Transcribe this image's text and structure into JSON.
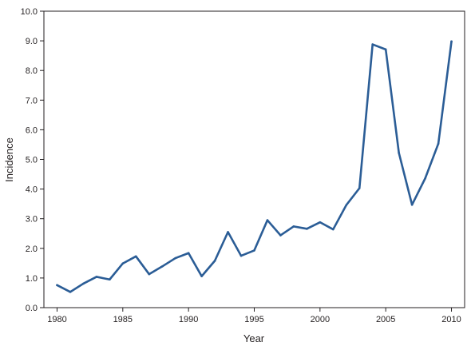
{
  "chart_data": {
    "type": "line",
    "title": "",
    "xlabel": "Year",
    "ylabel": "Incidence",
    "xlim": [
      1979,
      2011
    ],
    "ylim": [
      0,
      10
    ],
    "x_ticks": [
      1980,
      1985,
      1990,
      1995,
      2000,
      2005,
      2010
    ],
    "x_tick_labels": [
      "1980",
      "1985",
      "1990",
      "1995",
      "2000",
      "2005",
      "2010"
    ],
    "y_ticks": [
      0,
      1,
      2,
      3,
      4,
      5,
      6,
      7,
      8,
      9,
      10
    ],
    "y_tick_labels": [
      "0.0",
      "1.0",
      "2.0",
      "3.0",
      "4.0",
      "5.0",
      "6.0",
      "7.0",
      "8.0",
      "9.0",
      "10.0"
    ],
    "grid": false,
    "legend": "none",
    "series": [
      {
        "color": "#2b5d96",
        "x": [
          1980,
          1981,
          1982,
          1983,
          1984,
          1985,
          1986,
          1987,
          1988,
          1989,
          1990,
          1991,
          1992,
          1993,
          1994,
          1995,
          1996,
          1997,
          1998,
          1999,
          2000,
          2001,
          2002,
          2003,
          2004,
          2005,
          2006,
          2007,
          2008,
          2009,
          2010
        ],
        "y": [
          0.76,
          0.53,
          0.81,
          1.04,
          0.95,
          1.49,
          1.73,
          1.13,
          1.39,
          1.67,
          1.84,
          1.06,
          1.58,
          2.55,
          1.75,
          1.93,
          2.95,
          2.44,
          2.74,
          2.66,
          2.88,
          2.64,
          3.46,
          4.03,
          8.88,
          8.71,
          5.22,
          3.47,
          4.36,
          5.53,
          8.98
        ]
      }
    ]
  }
}
